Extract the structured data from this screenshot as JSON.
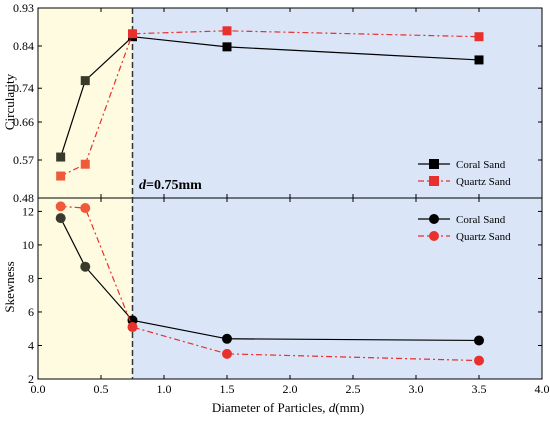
{
  "chart_data": [
    {
      "type": "line",
      "panel": "top",
      "title": "",
      "xlabel_prefix": "Diameter of Particles, ",
      "xlabel_var": "d",
      "xlabel_suffix": "(mm)",
      "ylabel": "Circularity",
      "xlim": [
        0.0,
        4.0
      ],
      "ylim": [
        0.48,
        0.93
      ],
      "xticks": [
        "0.0",
        "0.5",
        "1.0",
        "1.5",
        "2.0",
        "2.5",
        "3.0",
        "3.5",
        "4.0"
      ],
      "yticks": [
        "0.48",
        "0.57",
        "0.66",
        "0.74",
        "0.84",
        "0.93"
      ],
      "x": [
        0.18,
        0.375,
        0.75,
        1.5,
        3.5
      ],
      "series": [
        {
          "name": "Coral Sand",
          "values": [
            0.577,
            0.758,
            0.862,
            0.838,
            0.807
          ],
          "color": "#000000",
          "marker": "square",
          "line": "solid"
        },
        {
          "name": "Quartz Sand",
          "values": [
            0.532,
            0.56,
            0.869,
            0.876,
            0.862
          ],
          "color": "#e8302d",
          "marker": "square",
          "line": "dashdot"
        }
      ],
      "legend": "center-right",
      "annotation": {
        "prefix": "d",
        "suffix": "=0.75mm",
        "x": 0.75
      },
      "shading": {
        "left_region_x": [
          0.0,
          0.75
        ],
        "left_color": "#fffbe0",
        "right_color": "#dae6f8"
      }
    },
    {
      "type": "line",
      "panel": "bottom",
      "title": "",
      "ylabel": "Skewness",
      "xlim": [
        0.0,
        4.0
      ],
      "ylim": [
        2,
        12.8
      ],
      "yticks": [
        "2",
        "4",
        "6",
        "8",
        "10",
        "12"
      ],
      "x": [
        0.18,
        0.375,
        0.75,
        1.5,
        3.5
      ],
      "series": [
        {
          "name": "Coral Sand",
          "values": [
            11.6,
            8.7,
            5.5,
            4.4,
            4.3
          ],
          "color": "#000000",
          "marker": "circle",
          "line": "solid"
        },
        {
          "name": "Quartz Sand",
          "values": [
            12.3,
            12.2,
            5.1,
            3.5,
            3.1
          ],
          "color": "#e8302d",
          "marker": "circle",
          "line": "dashdot"
        }
      ],
      "legend": "top-right"
    }
  ],
  "colors": {
    "left_region": "#fffbe0",
    "right_region": "#dae6f8",
    "coral": "#000000",
    "quartz": "#e8302d",
    "blend_coral_left": "#3a3a2c",
    "blend_quartz_left": "#ee5a3a"
  }
}
